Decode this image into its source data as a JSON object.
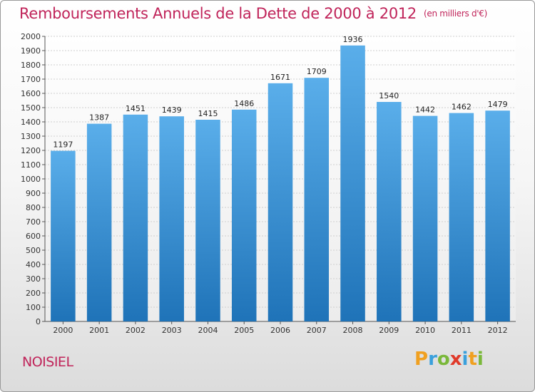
{
  "title": "Remboursements Annuels de la Dette de 2000 à 2012",
  "subtitle": "(en milliers d'€)",
  "commune": "NOISIEL",
  "logo": {
    "letters": [
      "P",
      "r",
      "o",
      "x",
      "i",
      "t",
      "i"
    ],
    "colors": [
      "#f0a020",
      "#3aa0dc",
      "#7ab83a",
      "#e03a2a",
      "#3aa0dc",
      "#f0a020",
      "#7ab83a"
    ]
  },
  "colors": {
    "bar_top": "#5aaeea",
    "bar_bottom": "#1f73b8",
    "accent": "#c0245a"
  },
  "chart_data": {
    "type": "bar",
    "title": "Remboursements Annuels de la Dette de 2000 à 2012",
    "subtitle": "(en milliers d'€)",
    "categories": [
      "2000",
      "2001",
      "2002",
      "2003",
      "2004",
      "2005",
      "2006",
      "2007",
      "2008",
      "2009",
      "2010",
      "2011",
      "2012"
    ],
    "values": [
      1197,
      1387,
      1451,
      1439,
      1415,
      1486,
      1671,
      1709,
      1936,
      1540,
      1442,
      1462,
      1479
    ],
    "ylim": [
      0,
      2000
    ],
    "ytick_step": 100,
    "grid": true,
    "xlabel": "",
    "ylabel": ""
  }
}
